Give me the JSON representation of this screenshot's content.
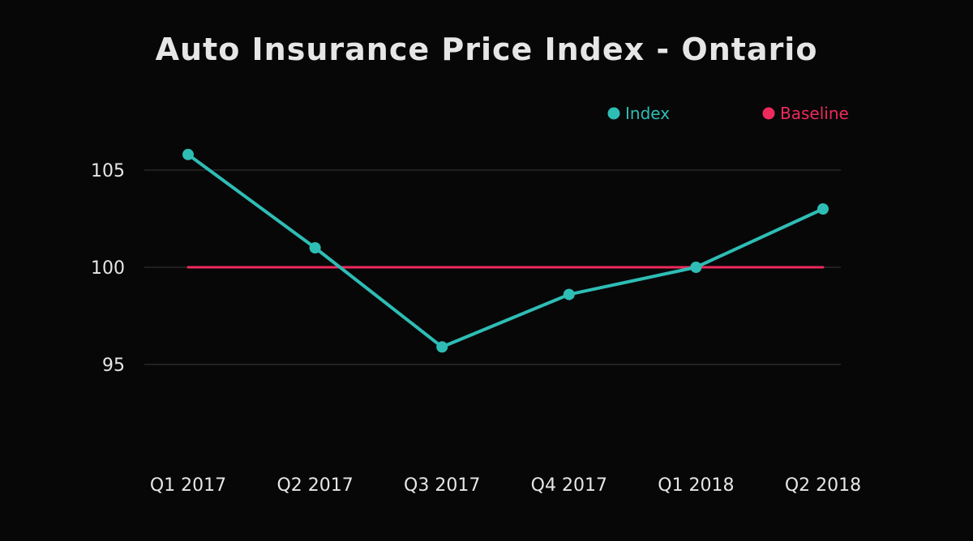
{
  "chart_data": {
    "type": "line",
    "title": "Auto Insurance Price Index - Ontario",
    "xlabel": "",
    "ylabel": "",
    "categories": [
      "Q1 2017",
      "Q2 2017",
      "Q3 2017",
      "Q4 2017",
      "Q1 2018",
      "Q2 2018"
    ],
    "series": [
      {
        "name": "Index",
        "values": [
          105.8,
          101.0,
          95.9,
          98.6,
          100.0,
          103.0
        ],
        "color": "#2ebdb5",
        "markers": true
      },
      {
        "name": "Baseline",
        "values": [
          100,
          100,
          100,
          100,
          100,
          100
        ],
        "color": "#ee2a5c",
        "markers": false
      }
    ],
    "yticks": [
      95,
      100,
      105
    ],
    "ytick_labels": [
      "95",
      "100",
      "105"
    ],
    "ylim": [
      90,
      110
    ],
    "grid": true,
    "legend_position": "top-right"
  },
  "colors": {
    "background": "#070708",
    "text": "#e6e6e6",
    "grid": "#3a3a3a"
  }
}
